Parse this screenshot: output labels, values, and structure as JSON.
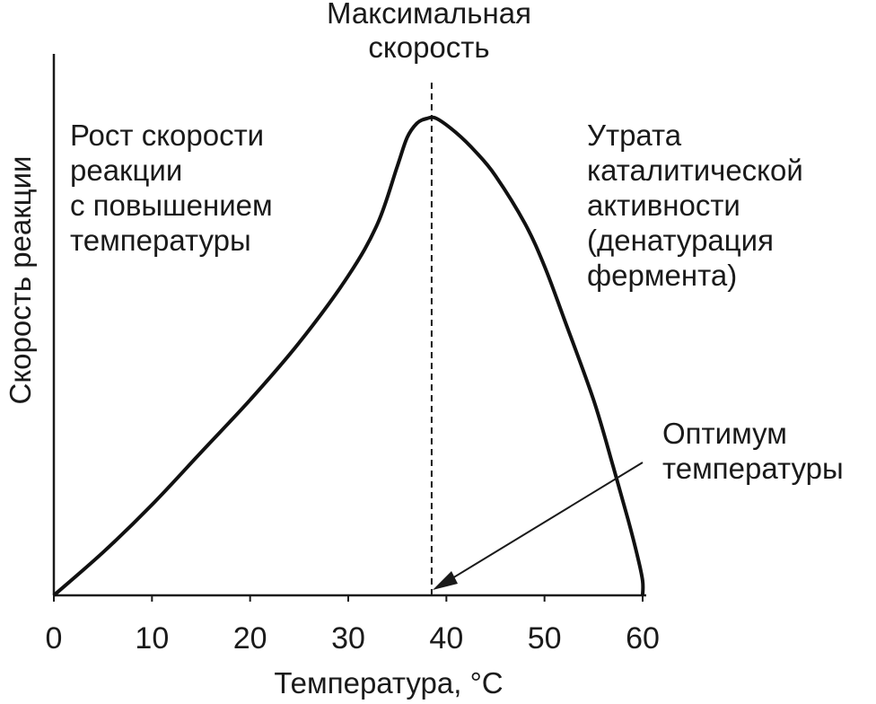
{
  "chart_data": {
    "type": "line",
    "xlabel": "Температура, °C",
    "ylabel": "Скорость реакции",
    "xlim": [
      0,
      60
    ],
    "xticks": [
      "0",
      "10",
      "20",
      "30",
      "40",
      "50",
      "60"
    ],
    "yticks_labeled": false,
    "grid": false,
    "legend": "none",
    "series": [
      {
        "x": [
          0,
          5,
          10,
          15,
          20,
          25,
          30,
          33,
          35,
          36,
          37,
          38,
          39,
          41,
          43,
          45,
          48,
          50,
          52,
          55,
          57,
          58.5,
          59.5,
          60,
          60
        ],
        "y": [
          0,
          0.09,
          0.19,
          0.3,
          0.41,
          0.53,
          0.67,
          0.78,
          0.9,
          0.96,
          0.99,
          1.0,
          1.0,
          0.97,
          0.93,
          0.88,
          0.78,
          0.69,
          0.58,
          0.41,
          0.27,
          0.16,
          0.08,
          0.03,
          0
        ]
      }
    ],
    "vline": {
      "x": 38.5,
      "style": "dashed",
      "label": [
        "Максимальная",
        "скорость"
      ]
    },
    "annotations": {
      "left": [
        "Рост скорости",
        "реакции",
        "с повышением",
        "температуры"
      ],
      "right": [
        "Утрата",
        "каталитической",
        "активности",
        "(денатурация",
        "фермента)"
      ],
      "optimum": [
        "Оптимум",
        "температуры"
      ]
    }
  }
}
